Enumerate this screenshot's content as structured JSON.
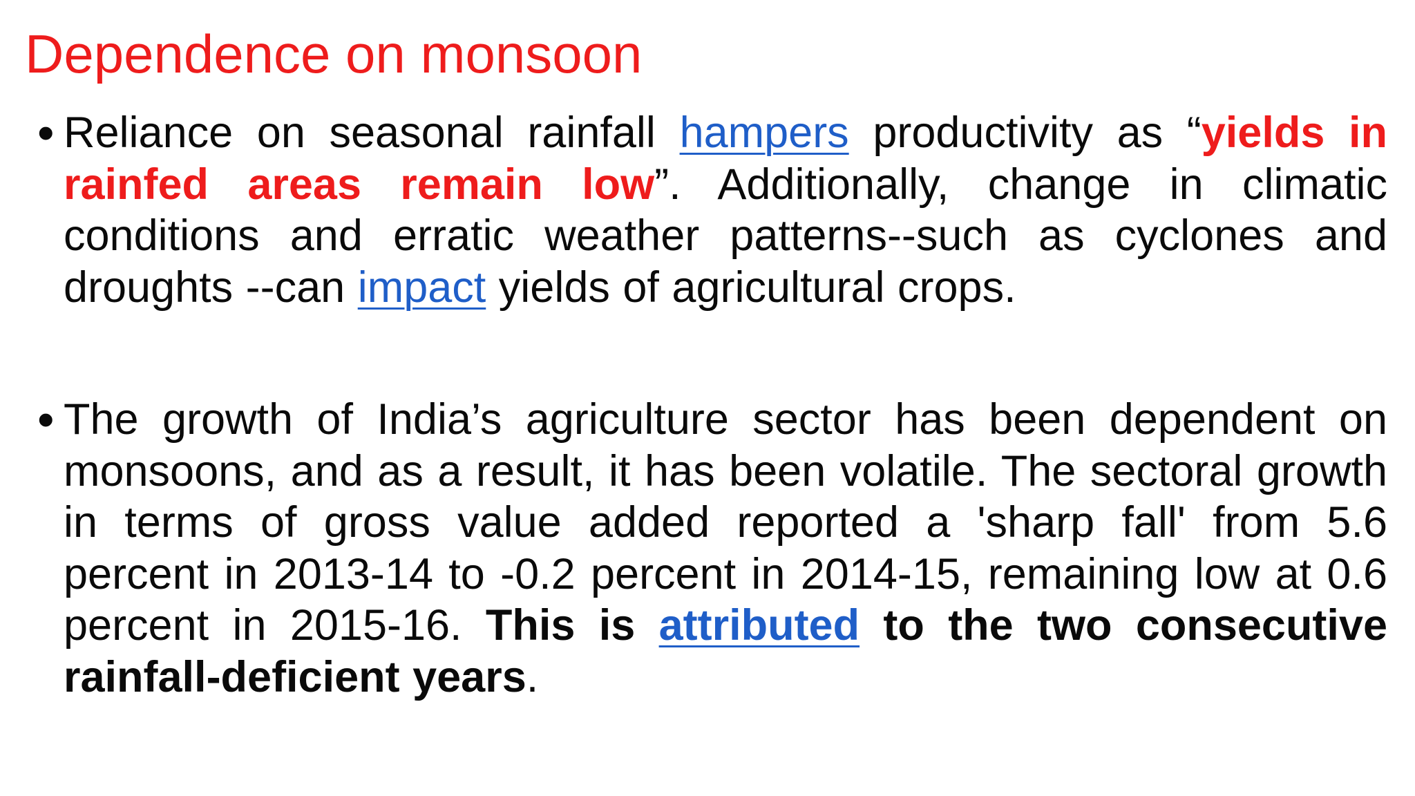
{
  "slide": {
    "title": "Dependence on monsoon",
    "colors": {
      "title": "#ee1c1c",
      "emphasis": "#ee1c1c",
      "link": "#1f5ec8",
      "text": "#0a0a0a"
    },
    "bullet_symbol": "•",
    "bullet1": {
      "t1": "Reliance on seasonal rainfall ",
      "link1": "hampers",
      "t2": " productivity as “",
      "emphasis": "yields in rainfed areas remain low",
      "t3": "”. Additionally, change in climatic conditions and erratic weather patterns--such as cyclones and droughts --can ",
      "link2": "impact",
      "t4": " yields of agricultural crops."
    },
    "bullet2": {
      "t1": "The growth of India’s agriculture sector has been dependent on monsoons, and as a result, it has been volatile. The sectoral growth in terms of gross value added reported a 'sharp fall' from 5.6 percent in 2013-14 to -0.2 percent in 2014-15, remaining low at 0.6 percent in 2015-16. ",
      "bold1": "This is ",
      "link1": "attributed",
      "bold2": " to the two consecutive rainfall-deficient years",
      "t2": "."
    }
  }
}
